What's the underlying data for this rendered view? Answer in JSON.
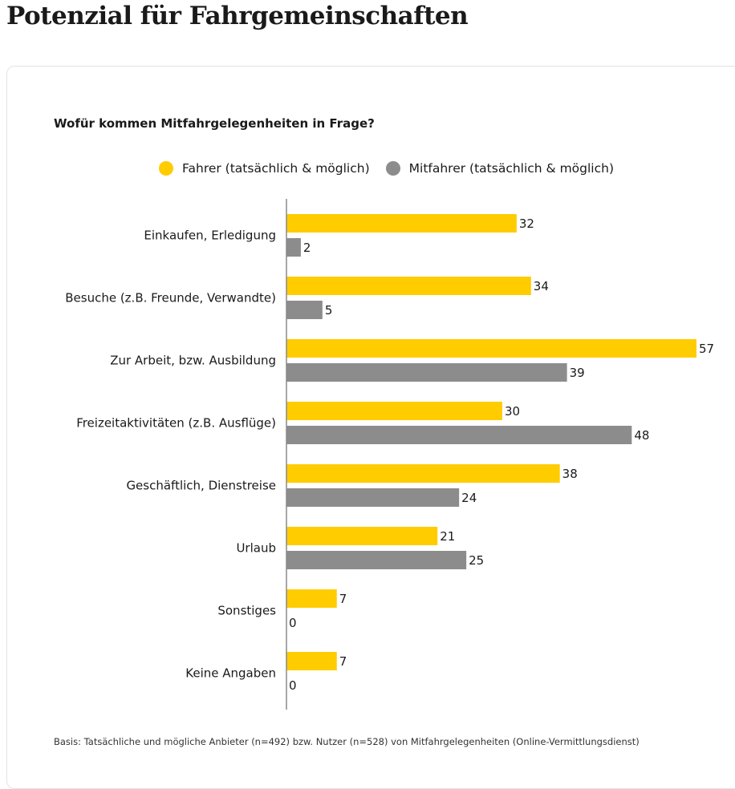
{
  "page": {
    "title": "Potenzial für Fahrgemeinschaften"
  },
  "chart_data": {
    "type": "bar",
    "orientation": "horizontal",
    "title": "Wofür kommen Mitfahrgelegenheiten in Frage?",
    "xlabel": "",
    "ylabel": "",
    "xlim": [
      0,
      57
    ],
    "grid": false,
    "legend_position": "top",
    "categories": [
      "Einkaufen, Erledigung",
      "Besuche (z.B. Freunde, Verwandte)",
      "Zur Arbeit, bzw. Ausbildung",
      "Freizeitaktivitäten (z.B. Ausflüge)",
      "Geschäftlich, Dienstreise",
      "Urlaub",
      "Sonstiges",
      "Keine Angaben"
    ],
    "series": [
      {
        "name": "Fahrer (tatsächlich & möglich)",
        "color": "#FFCC00",
        "values": [
          32,
          34,
          57,
          30,
          38,
          21,
          7,
          7
        ]
      },
      {
        "name": "Mitfahrer (tatsächlich & möglich)",
        "color": "#8C8C8C",
        "values": [
          2,
          5,
          39,
          48,
          24,
          25,
          0,
          0
        ]
      }
    ],
    "footnote": "Basis: Tatsächliche und mögliche Anbieter (n=492) bzw. Nutzer (n=528) von Mitfahrgelegenheiten (Online-Vermittlungsdienst)"
  },
  "colors": {
    "axis": "#8a8a8a",
    "text": "#1a1a1a"
  }
}
